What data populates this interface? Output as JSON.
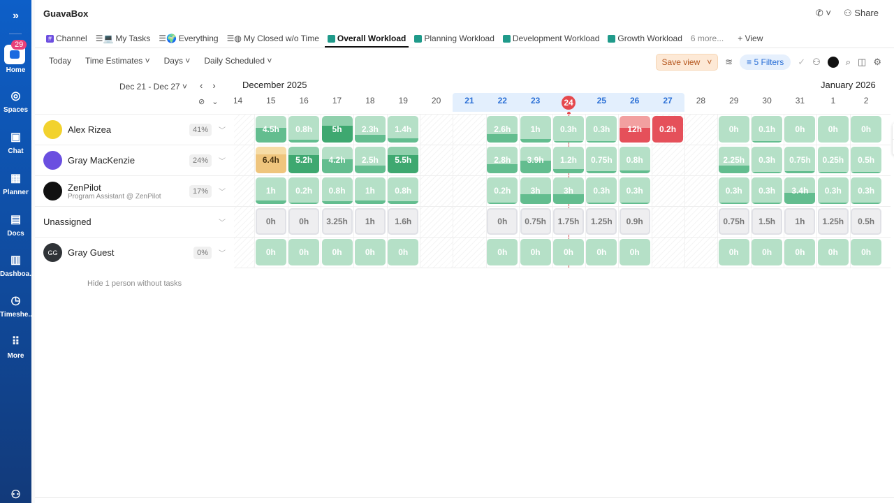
{
  "rail": {
    "home_badge": "29",
    "items": [
      {
        "label": "Home",
        "icon": "home-icon"
      },
      {
        "label": "Spaces",
        "icon": "planet-icon"
      },
      {
        "label": "Chat",
        "icon": "chat-icon"
      },
      {
        "label": "Planner",
        "icon": "calendar-icon"
      },
      {
        "label": "Docs",
        "icon": "doc-icon"
      },
      {
        "label": "Dashboa..",
        "icon": "chart-icon"
      },
      {
        "label": "Timeshe..",
        "icon": "clock-icon"
      },
      {
        "label": "More",
        "icon": "grid-icon"
      }
    ]
  },
  "header": {
    "title": "GuavaBox",
    "share": "Share"
  },
  "tabs": [
    {
      "label": "Channel"
    },
    {
      "label": "My Tasks"
    },
    {
      "label": "Everything"
    },
    {
      "label": "My Closed w/o Time"
    },
    {
      "label": "Overall Workload",
      "active": true
    },
    {
      "label": "Planning Workload"
    },
    {
      "label": "Development Workload"
    },
    {
      "label": "Growth Workload"
    },
    {
      "label": "6 more..."
    },
    {
      "label": "+ View"
    }
  ],
  "toolbar": {
    "today": "Today",
    "time_estimates": "Time Estimates",
    "days": "Days",
    "daily_scheduled": "Daily Scheduled",
    "save_view": "Save view",
    "filters": "5 Filters"
  },
  "range": "Dec 21 - Dec 27",
  "months": {
    "dec": "December 2025",
    "jan": "January 2026"
  },
  "colors": {
    "green_bg": "#b5e0c7",
    "green_fill": "#63bd8f",
    "dark_bg": "#8fd0ac",
    "dark_fill": "#3ea870",
    "red_bg": "#f2a0a0",
    "red_fill": "#e5505a",
    "yellow_bg": "#f6dca6",
    "yellow_fill": "#efc57d"
  },
  "dates": [
    {
      "d": "14",
      "w": 1
    },
    {
      "d": "15"
    },
    {
      "d": "16"
    },
    {
      "d": "17"
    },
    {
      "d": "18"
    },
    {
      "d": "19"
    },
    {
      "d": "20",
      "w": 1
    },
    {
      "d": "21",
      "w": 1,
      "hl": 1
    },
    {
      "d": "22",
      "hl": 1
    },
    {
      "d": "23",
      "hl": 1
    },
    {
      "d": "24",
      "hl": 1,
      "today": 1
    },
    {
      "d": "25",
      "hl": 1
    },
    {
      "d": "26",
      "hl": 1
    },
    {
      "d": "27",
      "w": 1,
      "hl": 1
    },
    {
      "d": "28",
      "w": 1
    },
    {
      "d": "29"
    },
    {
      "d": "30"
    },
    {
      "d": "31"
    },
    {
      "d": "1"
    },
    {
      "d": "2"
    }
  ],
  "people": [
    {
      "name": "Alex Rizea",
      "pct": "41%",
      "avatar_color": "#f2d22e",
      "cells": [
        null,
        [
          "4.5h",
          0.55
        ],
        [
          "0.8h",
          0.1
        ],
        [
          "5h",
          0.62,
          "dark"
        ],
        [
          "2.3h",
          0.28
        ],
        [
          "1.4h",
          0.17
        ],
        null,
        null,
        [
          "2.6h",
          0.32
        ],
        [
          "1h",
          0.12
        ],
        [
          "0.3h",
          0.04
        ],
        [
          "0.3h",
          0.04
        ],
        [
          "12h",
          0.55,
          "red"
        ],
        [
          "0.2h",
          1,
          "red"
        ],
        null,
        [
          "0h",
          0
        ],
        [
          "0.1h",
          0.01
        ],
        [
          "0h",
          0
        ],
        [
          "0h",
          0
        ],
        [
          "0h",
          0
        ]
      ]
    },
    {
      "name": "Gray MacKenzie",
      "pct": "24%",
      "avatar_color": "#6a4fe0",
      "cells": [
        null,
        [
          "6.4h",
          0.7,
          "yellow"
        ],
        [
          "5.2h",
          0.68,
          "dark"
        ],
        [
          "4.2h",
          0.52
        ],
        [
          "2.5h",
          0.3
        ],
        [
          "5.5h",
          0.68,
          "dark"
        ],
        null,
        null,
        [
          "2.8h",
          0.35
        ],
        [
          "3.9h",
          0.48
        ],
        [
          "1.2h",
          0.15
        ],
        [
          "0.75h",
          0.09
        ],
        [
          "0.8h",
          0.1
        ],
        null,
        null,
        [
          "2.25h",
          0.28
        ],
        [
          "0.3h",
          0.04
        ],
        [
          "0.75h",
          0.09
        ],
        [
          "0.25h",
          0.03
        ],
        [
          "0.5h",
          0.06
        ]
      ]
    },
    {
      "name": "ZenPilot",
      "subtitle": "Program Assistant @ ZenPilot",
      "pct": "17%",
      "avatar_color": "#111",
      "cells": [
        null,
        [
          "1h",
          0.12
        ],
        [
          "0.2h",
          0.03
        ],
        [
          "0.8h",
          0.1
        ],
        [
          "1h",
          0.12
        ],
        [
          "0.8h",
          0.1
        ],
        null,
        null,
        [
          "0.2h",
          0.03
        ],
        [
          "3h",
          0.37
        ],
        [
          "3h",
          0.37
        ],
        [
          "0.3h",
          0.04
        ],
        [
          "0.3h",
          0.04
        ],
        null,
        null,
        [
          "0.3h",
          0.04
        ],
        [
          "0.3h",
          0.04
        ],
        [
          "3.4h",
          0.42
        ],
        [
          "0.3h",
          0.04
        ],
        [
          "0.3h",
          0.04
        ]
      ]
    },
    {
      "name": "Unassigned",
      "unassigned": true,
      "cells": [
        null,
        [
          "0h"
        ],
        [
          "0h"
        ],
        [
          "3.25h"
        ],
        [
          "1h"
        ],
        [
          "1.6h"
        ],
        null,
        null,
        [
          "0h"
        ],
        [
          "0.75h"
        ],
        [
          "1.75h"
        ],
        [
          "1.25h"
        ],
        [
          "0.9h"
        ],
        null,
        null,
        [
          "0.75h"
        ],
        [
          "1.5h"
        ],
        [
          "1h"
        ],
        [
          "1.25h"
        ],
        [
          "0.5h"
        ]
      ]
    },
    {
      "name": "Gray Guest",
      "initials": "GG",
      "pct": "0%",
      "avatar_color": "#2f3337",
      "cells": [
        null,
        [
          "0h",
          0
        ],
        [
          "0h",
          0
        ],
        [
          "0h",
          0
        ],
        [
          "0h",
          0
        ],
        [
          "0h",
          0
        ],
        null,
        null,
        [
          "0h",
          0
        ],
        [
          "0h",
          0
        ],
        [
          "0h",
          0
        ],
        [
          "0h",
          0
        ],
        [
          "0h",
          0
        ],
        null,
        null,
        [
          "0h",
          0
        ],
        [
          "0h",
          0
        ],
        [
          "0h",
          0
        ],
        [
          "0h",
          0
        ],
        [
          "0h",
          0
        ]
      ]
    }
  ],
  "hide_label": "Hide 1 person without tasks"
}
